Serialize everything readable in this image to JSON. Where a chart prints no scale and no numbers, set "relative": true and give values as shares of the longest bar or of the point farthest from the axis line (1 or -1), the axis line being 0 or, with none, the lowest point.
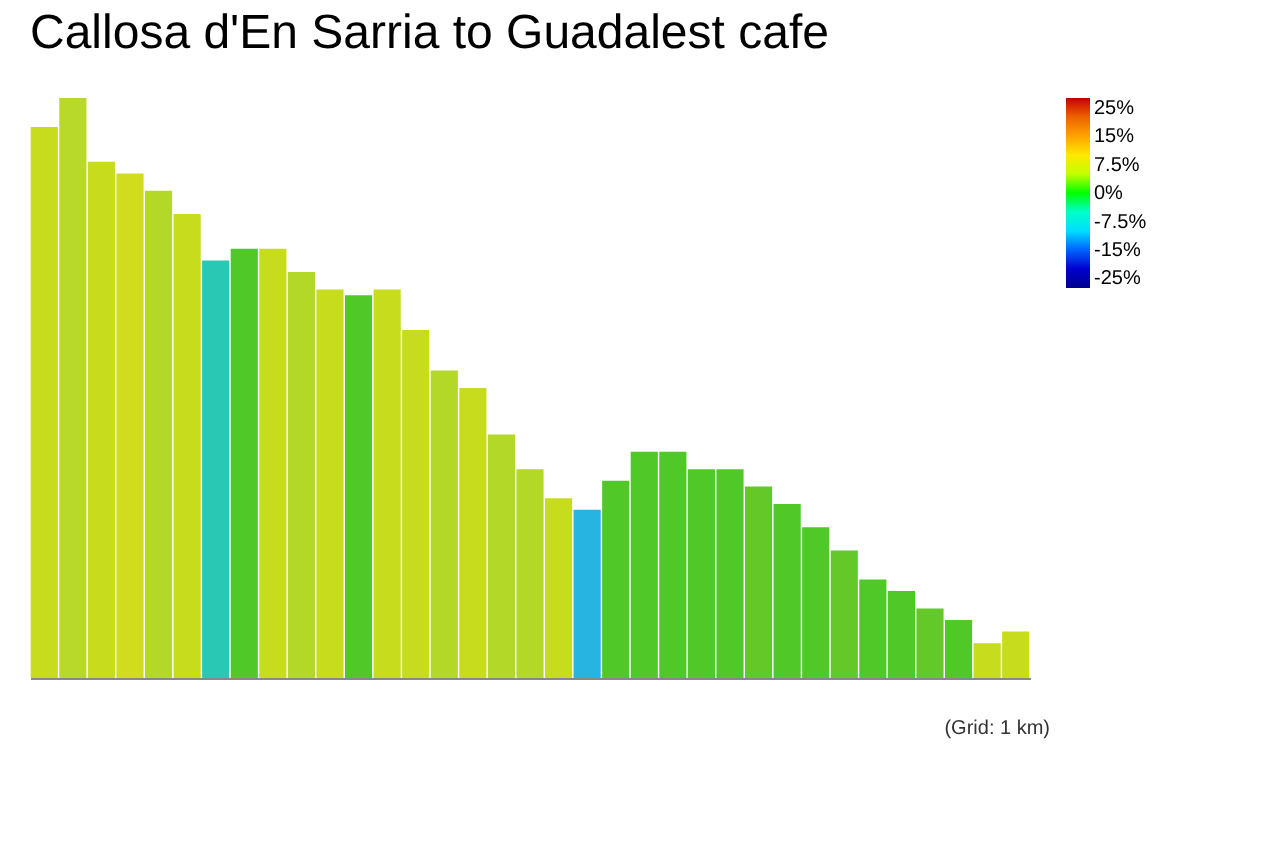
{
  "chart_data": {
    "type": "bar",
    "title": "Callosa d'En Sarria to Guadalest cafe",
    "relative": true,
    "categories": [
      null,
      null,
      null,
      null,
      null,
      null,
      null,
      null,
      null,
      null,
      null,
      null,
      null,
      null,
      null,
      null,
      null,
      null,
      null,
      null,
      null,
      null,
      null,
      null,
      null,
      null,
      null,
      null,
      null,
      null,
      null,
      null,
      null,
      null,
      null
    ],
    "values": [
      0.95,
      1.0,
      0.89,
      0.87,
      0.84,
      0.8,
      0.72,
      0.74,
      0.74,
      0.7,
      0.67,
      0.66,
      0.67,
      0.6,
      0.53,
      0.5,
      0.42,
      0.36,
      0.31,
      0.29,
      0.34,
      0.39,
      0.39,
      0.36,
      0.36,
      0.33,
      0.3,
      0.26,
      0.22,
      0.17,
      0.15,
      0.12,
      0.1,
      0.06,
      0.08
    ],
    "colors": [
      "#c8dc1e",
      "#b8d82a",
      "#c8dc1e",
      "#d2dc1e",
      "#b4d828",
      "#c8dc1e",
      "#28c8b4",
      "#50c828",
      "#c8dc1e",
      "#b4d828",
      "#c8dc1e",
      "#50c828",
      "#c8dc1e",
      "#c8dc1e",
      "#b4d828",
      "#c8dc1e",
      "#b4d828",
      "#b4d828",
      "#c8dc1e",
      "#28b4e0",
      "#50c828",
      "#50c828",
      "#50c828",
      "#50c828",
      "#50c828",
      "#64c828",
      "#50c828",
      "#50c828",
      "#64c828",
      "#50c828",
      "#50c828",
      "#64c828",
      "#50c828",
      "#c8dc1e",
      "#c8dc1e"
    ],
    "clim": [
      -25,
      25
    ],
    "cticks": [
      {
        "value": 25,
        "label": "25%"
      },
      {
        "value": 15,
        "label": "15%"
      },
      {
        "value": 7.5,
        "label": "7.5%"
      },
      {
        "value": 0,
        "label": "0%"
      },
      {
        "value": -7.5,
        "label": "-7.5%"
      },
      {
        "value": -15,
        "label": "-15%"
      },
      {
        "value": -25,
        "label": "-25%"
      }
    ],
    "annotations": [
      "(Grid: 1 km)"
    ]
  }
}
